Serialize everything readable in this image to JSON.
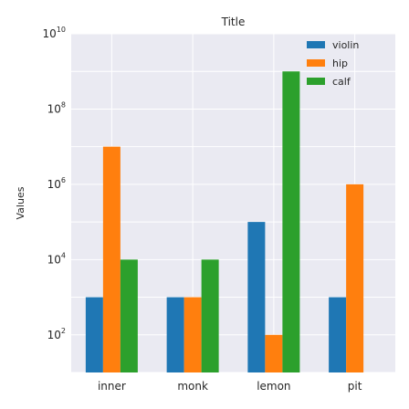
{
  "chart_data": {
    "type": "bar",
    "title": "Title",
    "xlabel": "",
    "ylabel": "Values",
    "yscale": "log",
    "ylim": [
      10,
      10000000000
    ],
    "grid": true,
    "legend_position": "top-right",
    "categories": [
      "inner",
      "monk",
      "lemon",
      "pit"
    ],
    "series": [
      {
        "name": "violin",
        "color": "#1f77b4",
        "values": [
          1000,
          1000,
          100000,
          1000
        ]
      },
      {
        "name": "hip",
        "color": "#ff7f0e",
        "values": [
          10000000,
          1000,
          100,
          1000000
        ]
      },
      {
        "name": "calf",
        "color": "#2ca02c",
        "values": [
          10000,
          10000,
          1000000000,
          10
        ]
      }
    ],
    "y_ticks": [
      {
        "value": 100,
        "base": "10",
        "exp": "2"
      },
      {
        "value": 10000,
        "base": "10",
        "exp": "4"
      },
      {
        "value": 1000000,
        "base": "10",
        "exp": "6"
      },
      {
        "value": 100000000,
        "base": "10",
        "exp": "8"
      },
      {
        "value": 10000000000,
        "base": "10",
        "exp": "10"
      }
    ]
  }
}
